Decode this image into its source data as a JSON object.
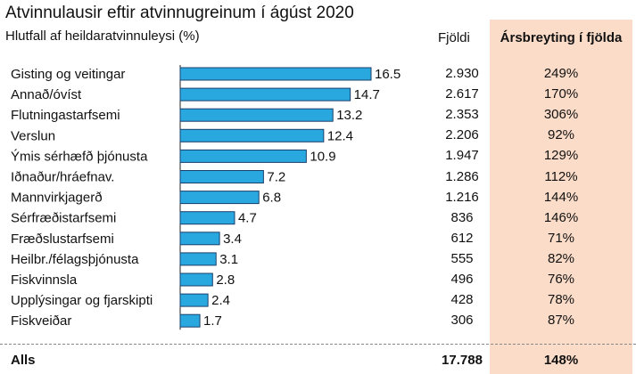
{
  "title": "Atvinnulausir eftir atvinnugreinum í ágúst 2020",
  "subtitle": "Hlutfall af heildaratvinnuleysi (%)",
  "count_header": "Fjöldi",
  "change_header": "Ársbreyting í fjölda",
  "colors": {
    "bar": "#29a8e0",
    "bar_stroke": "#1b3f6b",
    "change_panel": "#fbdcc8",
    "axis": "#222222"
  },
  "chart_data": {
    "type": "bar",
    "orientation": "horizontal",
    "title": "Atvinnulausir eftir atvinnugreinum í ágúst 2020",
    "subtitle": "Hlutfall af heildaratvinnuleysi (%)",
    "categories": [
      "Gisting og veitingar",
      "Annað/óvíst",
      "Flutningastarfsemi",
      "Verslun",
      "Ýmis sérhæfð þjónusta",
      "Iðnaður/hráefnav.",
      "Mannvirkjagerð",
      "Sérfræðistarfsemi",
      "Fræðslustarfsemi",
      "Heilbr./félagsþjónusta",
      "Fiskvinnsla",
      "Upplýsingar og fjarskipti",
      "Fiskveiðar"
    ],
    "values": [
      16.5,
      14.7,
      13.2,
      12.4,
      10.9,
      7.2,
      6.8,
      4.7,
      3.4,
      3.1,
      2.8,
      2.4,
      1.7
    ],
    "value_labels": [
      "16.5",
      "14.7",
      "13.2",
      "12.4",
      "10.9",
      "7.2",
      "6.8",
      "4.7",
      "3.4",
      "3.1",
      "2.8",
      "2.4",
      "1.7"
    ],
    "xlim": [
      0,
      20
    ],
    "grid": false,
    "table": {
      "counts": [
        "2.930",
        "2.617",
        "2.353",
        "2.206",
        "1.947",
        "1.286",
        "1.216",
        "836",
        "612",
        "555",
        "496",
        "428",
        "306"
      ],
      "changes": [
        "249%",
        "170%",
        "306%",
        "92%",
        "129%",
        "112%",
        "144%",
        "146%",
        "71%",
        "82%",
        "76%",
        "78%",
        "87%"
      ]
    }
  },
  "total": {
    "label": "Alls",
    "count": "17.788",
    "change": "148%"
  }
}
